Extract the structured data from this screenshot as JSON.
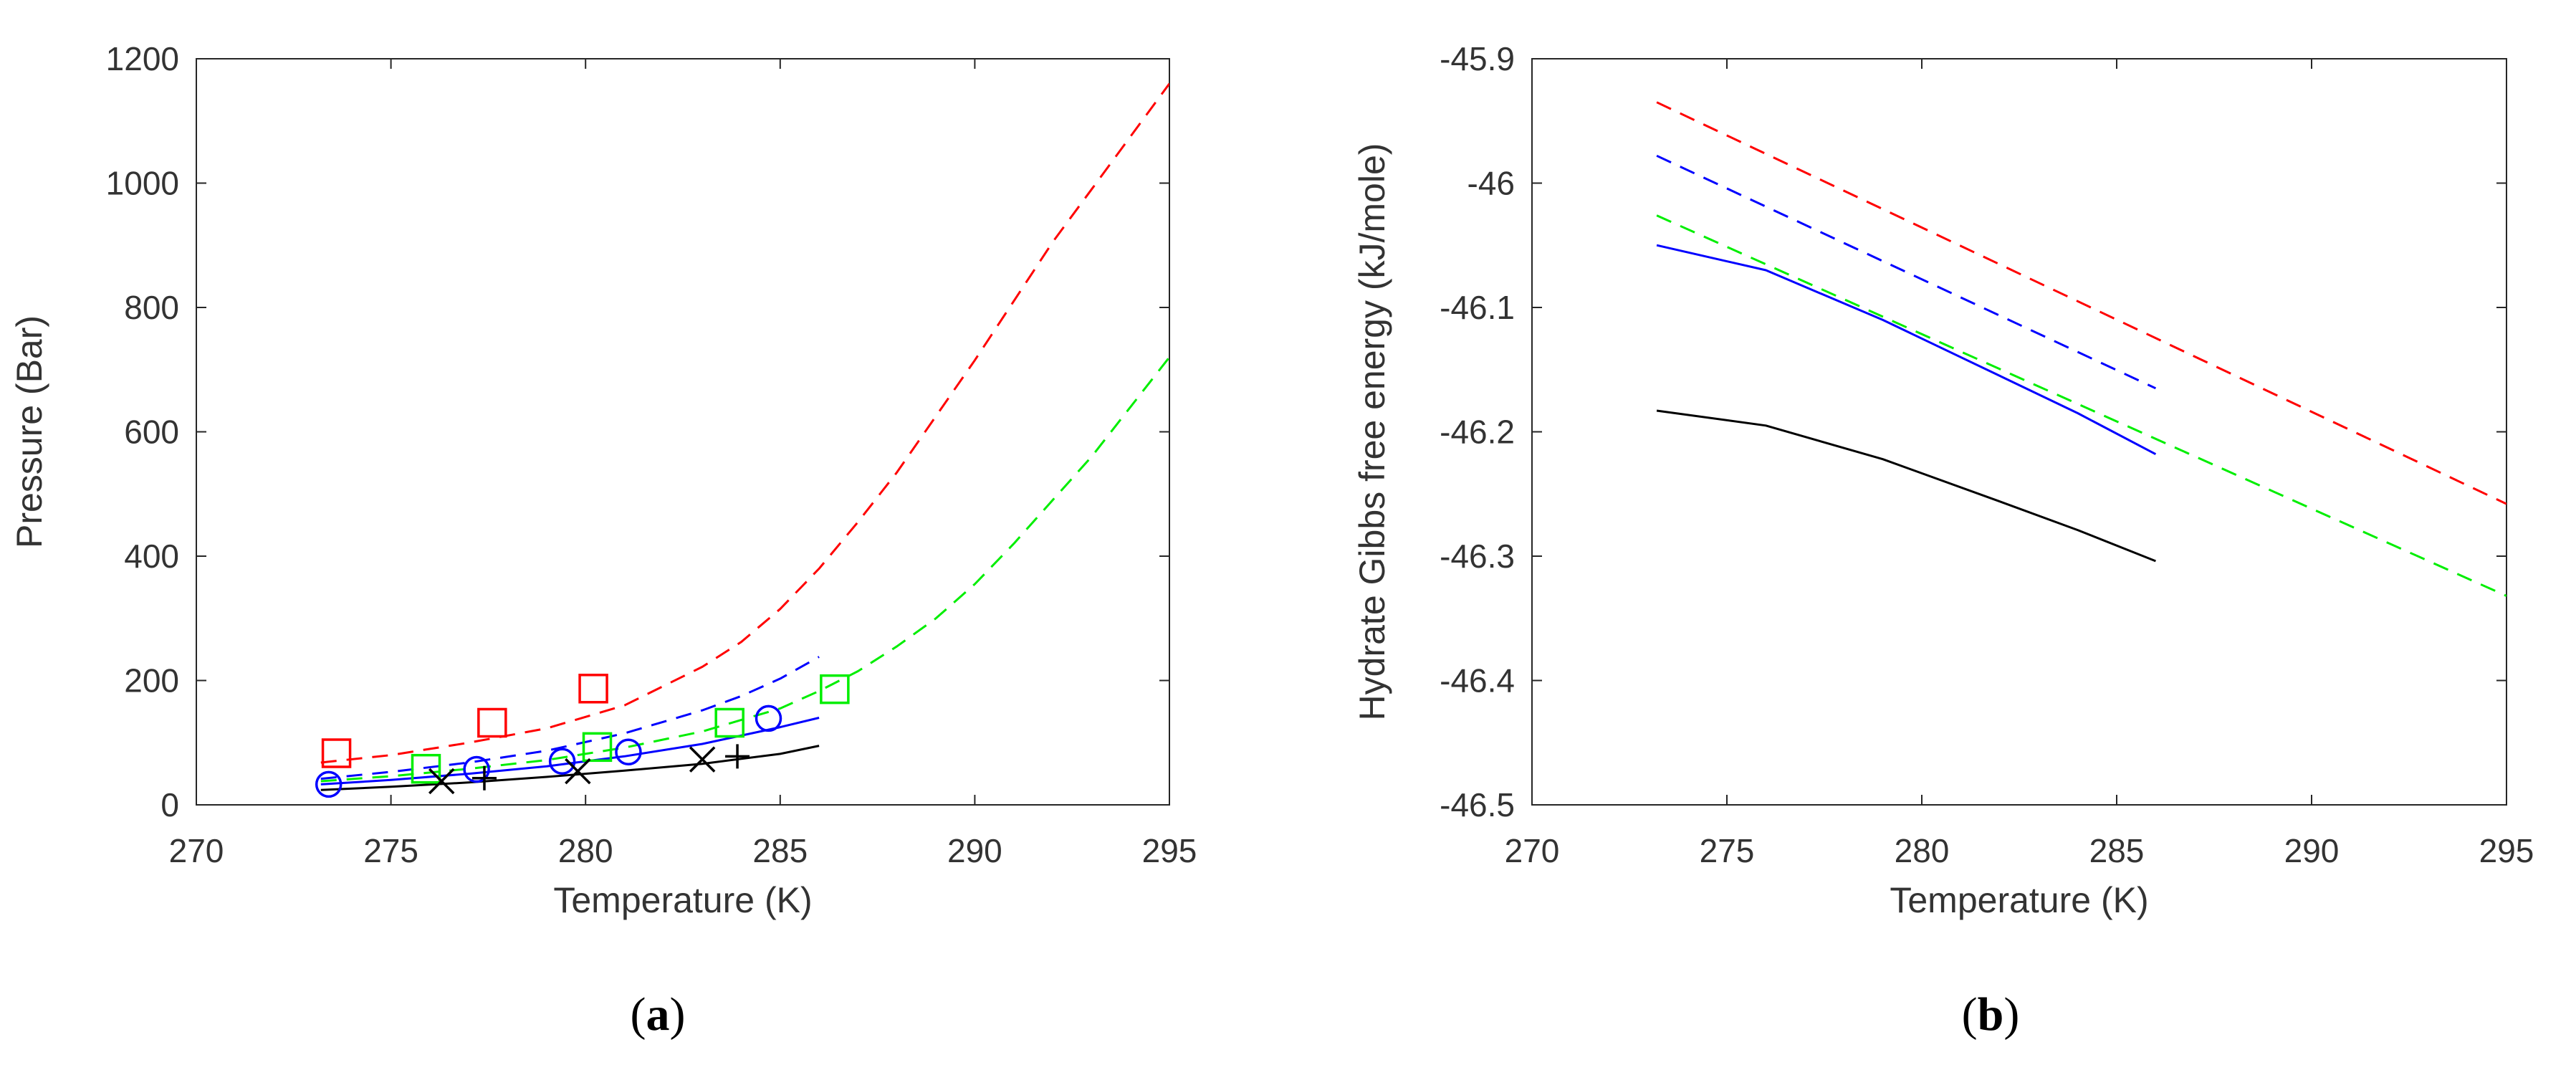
{
  "colors": {
    "red": "#ff0000",
    "blue": "#0000ff",
    "green": "#00ee00",
    "black": "#000000"
  },
  "chart_data": [
    {
      "panel": "a",
      "caption_label": "a",
      "type": "line",
      "title": "",
      "xlabel": "Temperature (K)",
      "ylabel": "Pressure (Bar)",
      "xlim": [
        270,
        295
      ],
      "ylim": [
        0,
        1200
      ],
      "xticks": [
        270,
        275,
        280,
        285,
        290,
        295
      ],
      "yticks": [
        0,
        200,
        400,
        600,
        800,
        1000,
        1200
      ],
      "grid": false,
      "legend": "none",
      "series": [
        {
          "name": "red dashed",
          "color": "red",
          "style": "dashed",
          "x": [
            273.2,
            275,
            277,
            279,
            281,
            283,
            284,
            285,
            286,
            287,
            288,
            289,
            290,
            291,
            292,
            293,
            294,
            295
          ],
          "y": [
            68,
            80,
            100,
            123,
            160,
            222,
            262,
            315,
            380,
            455,
            535,
            625,
            715,
            810,
            905,
            990,
            1075,
            1160
          ]
        },
        {
          "name": "blue dashed",
          "color": "blue",
          "style": "dashed",
          "x": [
            273.2,
            275,
            277,
            279,
            281,
            283,
            284,
            285,
            286
          ],
          "y": [
            42,
            53,
            68,
            87,
            115,
            152,
            175,
            203,
            238
          ]
        },
        {
          "name": "green dashed",
          "color": "green",
          "style": "dashed",
          "x": [
            273.2,
            275,
            277,
            279,
            281,
            283,
            285,
            286,
            287,
            288,
            289,
            290,
            291,
            292,
            293,
            294,
            295
          ],
          "y": [
            38,
            46,
            58,
            72,
            92,
            118,
            155,
            183,
            215,
            255,
            300,
            355,
            420,
            490,
            560,
            640,
            720
          ]
        },
        {
          "name": "blue solid",
          "color": "blue",
          "style": "solid",
          "x": [
            273.2,
            275,
            277,
            279,
            281,
            283,
            285,
            286
          ],
          "y": [
            33,
            40,
            50,
            62,
            78,
            98,
            125,
            140
          ]
        },
        {
          "name": "black solid",
          "color": "black",
          "style": "solid",
          "x": [
            273.2,
            275,
            277,
            279,
            281,
            283,
            285,
            286
          ],
          "y": [
            24,
            29,
            36,
            45,
            55,
            66,
            82,
            95
          ]
        },
        {
          "name": "red squares",
          "color": "red",
          "marker": "square",
          "x": [
            273.6,
            277.6,
            280.2
          ],
          "y": [
            83,
            132,
            187
          ]
        },
        {
          "name": "green squares",
          "color": "green",
          "marker": "square",
          "x": [
            275.9,
            280.3,
            283.7,
            286.4
          ],
          "y": [
            58,
            93,
            132,
            186
          ]
        },
        {
          "name": "blue circles",
          "color": "blue",
          "marker": "circle",
          "x": [
            273.4,
            277.2,
            279.4,
            281.1,
            284.7
          ],
          "y": [
            33,
            57,
            70,
            85,
            139
          ]
        },
        {
          "name": "black crosses",
          "color": "black",
          "marker": "x",
          "x": [
            276.3,
            279.8,
            283.0
          ],
          "y": [
            38,
            54,
            73
          ]
        },
        {
          "name": "black plus",
          "color": "black",
          "marker": "plus",
          "x": [
            277.4,
            283.9
          ],
          "y": [
            43,
            78
          ]
        }
      ]
    },
    {
      "panel": "b",
      "caption_label": "b",
      "type": "line",
      "title": "",
      "xlabel": "Temperature (K)",
      "ylabel": "Hydrate Gibbs free energy (kJ/mole)",
      "xlim": [
        270,
        295
      ],
      "ylim": [
        -46.5,
        -45.9
      ],
      "xticks": [
        270,
        275,
        280,
        285,
        290,
        295
      ],
      "yticks": [
        -46.5,
        -46.4,
        -46.3,
        -46.2,
        -46.1,
        -46.0,
        -45.9
      ],
      "ytick_labels": [
        "-46.5",
        "-46.4",
        "-46.3",
        "-46.2",
        "-46.1",
        "-46",
        "-45.9"
      ],
      "grid": false,
      "legend": "none",
      "series": [
        {
          "name": "red dashed",
          "color": "red",
          "style": "dashed",
          "x": [
            273.2,
            295
          ],
          "y": [
            -45.935,
            -46.258
          ]
        },
        {
          "name": "blue dashed",
          "color": "blue",
          "style": "dashed",
          "x": [
            273.2,
            286
          ],
          "y": [
            -45.978,
            -46.165
          ]
        },
        {
          "name": "green dashed",
          "color": "green",
          "style": "dashed",
          "x": [
            273.2,
            295
          ],
          "y": [
            -46.026,
            -46.332
          ]
        },
        {
          "name": "blue solid",
          "color": "blue",
          "style": "solid",
          "x": [
            273.2,
            276,
            279,
            282,
            284,
            286
          ],
          "y": [
            -46.05,
            -46.07,
            -46.11,
            -46.155,
            -46.185,
            -46.218
          ]
        },
        {
          "name": "black solid",
          "color": "black",
          "style": "solid",
          "x": [
            273.2,
            276,
            279,
            282,
            284,
            286
          ],
          "y": [
            -46.183,
            -46.195,
            -46.222,
            -46.256,
            -46.279,
            -46.304
          ]
        }
      ]
    }
  ]
}
